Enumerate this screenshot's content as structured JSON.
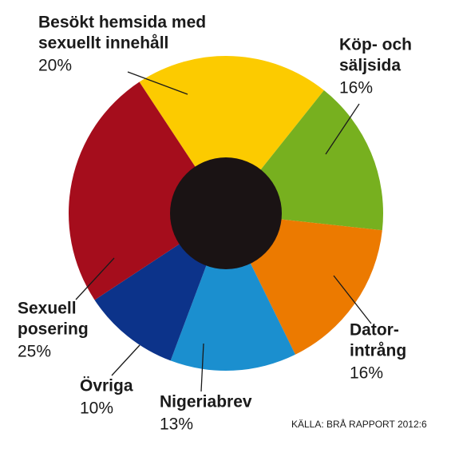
{
  "chart_data": {
    "type": "donut",
    "categories": [
      [
        "Besökt hemsida med",
        "sexuellt innehåll"
      ],
      [
        "Köp- och",
        "säljsida"
      ],
      [
        "Dator-",
        "intrång"
      ],
      [
        "Nigeriabrev"
      ],
      [
        "Övriga"
      ],
      [
        "Sexuell",
        "posering"
      ]
    ],
    "values": [
      20,
      16,
      16,
      13,
      10,
      25
    ],
    "value_labels": [
      "20%",
      "16%",
      "16%",
      "13%",
      "10%",
      "25%"
    ],
    "colors": [
      "#fccb00",
      "#77b01f",
      "#ec7a00",
      "#1b8fcf",
      "#0c338a",
      "#a50d1c"
    ],
    "hole_color": "#1a1314",
    "source": "KÄLLA: BRÅ RAPPORT 2012:6"
  }
}
